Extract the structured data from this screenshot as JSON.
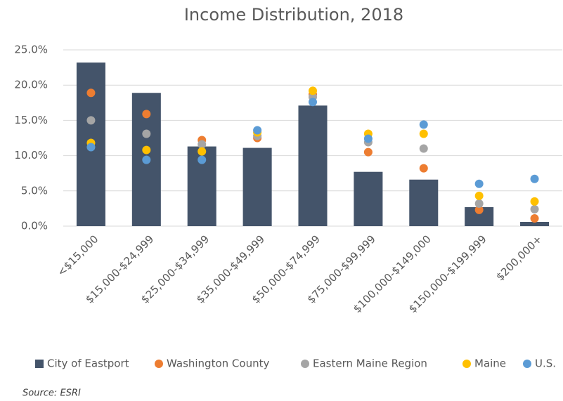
{
  "chart_data": {
    "type": "bar",
    "title": "Income Distribution, 2018",
    "source": "Source: ESRI",
    "categories": [
      "<$15,000",
      "$15,000-$24,999",
      "$25,000-$34,999",
      "$35,000-$49,999",
      "$50,000-$74,999",
      "$75,000-$99,999",
      "$100,000-$149,000",
      "$150,000-$199,999",
      "$200,000+"
    ],
    "series": [
      {
        "name": "City of Eastport",
        "type": "bar",
        "color": "#44546a",
        "values": [
          23.2,
          18.9,
          11.3,
          11.1,
          17.1,
          7.7,
          6.6,
          2.7,
          0.6
        ]
      },
      {
        "name": "Washington County",
        "type": "scatter",
        "color": "#ed7d31",
        "values": [
          18.9,
          15.9,
          12.2,
          12.5,
          18.7,
          10.5,
          8.2,
          2.3,
          1.1
        ]
      },
      {
        "name": "Eastern Maine Region",
        "type": "scatter",
        "color": "#a5a5a5",
        "values": [
          15.0,
          13.1,
          11.6,
          12.8,
          18.3,
          11.9,
          11.0,
          3.2,
          2.4
        ]
      },
      {
        "name": "Maine",
        "type": "scatter",
        "color": "#ffc000",
        "values": [
          11.8,
          10.8,
          10.6,
          13.3,
          19.2,
          13.1,
          13.1,
          4.3,
          3.5
        ]
      },
      {
        "name": "U.S.",
        "type": "scatter",
        "color": "#5b9bd5",
        "values": [
          11.2,
          9.4,
          9.4,
          13.6,
          17.6,
          12.4,
          14.4,
          6.0,
          6.7
        ]
      }
    ],
    "ylim": [
      0,
      25
    ],
    "yticks": [
      {
        "value": 0,
        "label": "0.0%"
      },
      {
        "value": 5,
        "label": "5.0%"
      },
      {
        "value": 10,
        "label": "10.0%"
      },
      {
        "value": 15,
        "label": "15.0%"
      },
      {
        "value": 20,
        "label": "20.0%"
      },
      {
        "value": 25,
        "label": "25.0%"
      }
    ],
    "grid": true,
    "legend": "bottom"
  }
}
